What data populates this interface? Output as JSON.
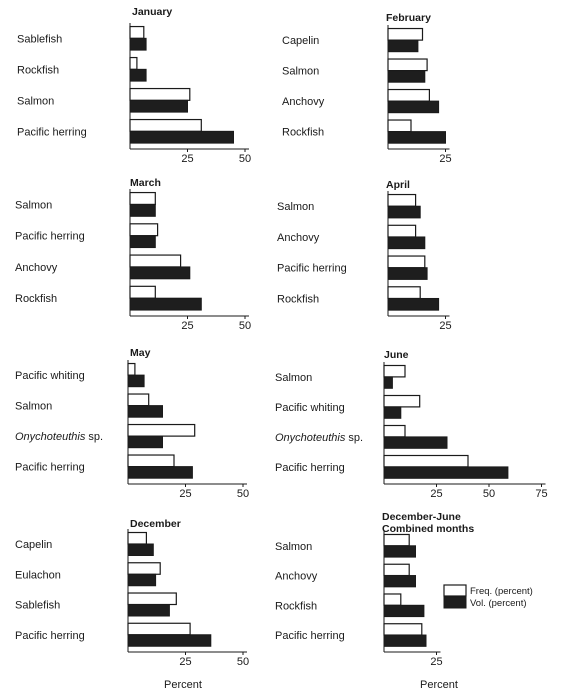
{
  "legend": {
    "freq_label": "Freq. (percent)",
    "vol_label": "Vol. (percent)"
  },
  "colors": {
    "freq_fill": "#ffffff",
    "vol_fill": "#1e1e1e",
    "stroke": "#1a1a1a"
  },
  "chart_data": [
    {
      "type": "bar",
      "title": "January",
      "xlabel": "",
      "categories": [
        "Sablefish",
        "Rockfish",
        "Salmon",
        "Pacific herring"
      ],
      "xlim": [
        0,
        50
      ],
      "ticks": [
        "25",
        "50"
      ],
      "series": [
        {
          "name": "Freq. (percent)",
          "values": [
            6,
            3,
            26,
            31
          ]
        },
        {
          "name": "Vol. (percent)",
          "values": [
            7,
            7,
            25,
            45
          ]
        }
      ]
    },
    {
      "type": "bar",
      "title": "February",
      "xlabel": "",
      "categories": [
        "Capelin",
        "Salmon",
        "Anchovy",
        "Rockfish"
      ],
      "xlim": [
        0,
        25
      ],
      "ticks": [
        "25"
      ],
      "series": [
        {
          "name": "Freq. (percent)",
          "values": [
            15,
            17,
            18,
            10
          ]
        },
        {
          "name": "Vol. (percent)",
          "values": [
            13,
            16,
            22,
            25
          ]
        }
      ]
    },
    {
      "type": "bar",
      "title": "March",
      "xlabel": "",
      "categories": [
        "Salmon",
        "Pacific herring",
        "Anchovy",
        "Rockfish"
      ],
      "xlim": [
        0,
        50
      ],
      "ticks": [
        "25",
        "50"
      ],
      "series": [
        {
          "name": "Freq. (percent)",
          "values": [
            11,
            12,
            22,
            11
          ]
        },
        {
          "name": "Vol. (percent)",
          "values": [
            11,
            11,
            26,
            31
          ]
        }
      ]
    },
    {
      "type": "bar",
      "title": "April",
      "xlabel": "",
      "categories": [
        "Salmon",
        "Anchovy",
        "Pacific herring",
        "Rockfish"
      ],
      "xlim": [
        0,
        25
      ],
      "ticks": [
        "25"
      ],
      "series": [
        {
          "name": "Freq. (percent)",
          "values": [
            12,
            12,
            16,
            14
          ]
        },
        {
          "name": "Vol. (percent)",
          "values": [
            14,
            16,
            17,
            22
          ]
        }
      ]
    },
    {
      "type": "bar",
      "title": "May",
      "xlabel": "",
      "categories": [
        "Pacific whiting",
        "Salmon",
        "Onychoteuthis sp.",
        "Pacific herring"
      ],
      "xlim": [
        0,
        50
      ],
      "ticks": [
        "25",
        "50"
      ],
      "series": [
        {
          "name": "Freq. (percent)",
          "values": [
            3,
            9,
            29,
            20
          ]
        },
        {
          "name": "Vol. (percent)",
          "values": [
            7,
            15,
            15,
            28
          ]
        }
      ]
    },
    {
      "type": "bar",
      "title": "June",
      "xlabel": "",
      "categories": [
        "Salmon",
        "Pacific whiting",
        "Onychoteuthis sp.",
        "Pacific herring"
      ],
      "xlim": [
        0,
        75
      ],
      "ticks": [
        "25",
        "50",
        "75"
      ],
      "series": [
        {
          "name": "Freq. (percent)",
          "values": [
            10,
            17,
            10,
            40
          ]
        },
        {
          "name": "Vol. (percent)",
          "values": [
            4,
            8,
            30,
            59
          ]
        }
      ]
    },
    {
      "type": "bar",
      "title": "December",
      "xlabel": "Percent",
      "categories": [
        "Capelin",
        "Eulachon",
        "Sablefish",
        "Pacific herring"
      ],
      "xlim": [
        0,
        50
      ],
      "ticks": [
        "25",
        "50"
      ],
      "series": [
        {
          "name": "Freq. (percent)",
          "values": [
            8,
            14,
            21,
            27
          ]
        },
        {
          "name": "Vol. (percent)",
          "values": [
            11,
            12,
            18,
            36
          ]
        }
      ]
    },
    {
      "type": "bar",
      "title": "December-June Combined months",
      "xlabel": "Percent",
      "categories": [
        "Salmon",
        "Anchovy",
        "Rockfish",
        "Pacific herring"
      ],
      "xlim": [
        0,
        25
      ],
      "ticks": [
        "25"
      ],
      "series": [
        {
          "name": "Freq. (percent)",
          "values": [
            12,
            12,
            8,
            18
          ]
        },
        {
          "name": "Vol. (percent)",
          "values": [
            15,
            15,
            19,
            20
          ]
        }
      ]
    }
  ]
}
